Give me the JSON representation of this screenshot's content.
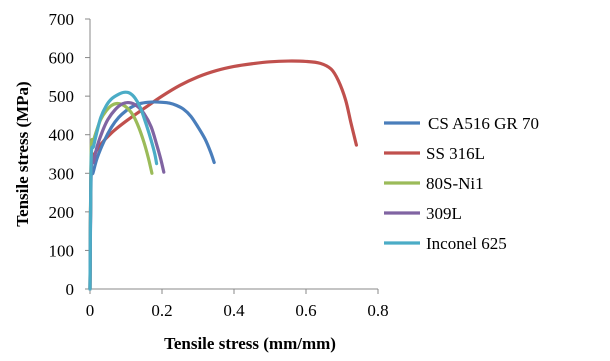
{
  "chart_data": {
    "type": "line",
    "title": "",
    "xlabel": "Tensile stress (mm/mm)",
    "ylabel": "Tensile stress (MPa)",
    "xlim": [
      0,
      0.8
    ],
    "ylim": [
      0,
      700
    ],
    "x_ticks": [
      "0",
      "0.2",
      "0.4",
      "0.6",
      "0.8"
    ],
    "y_ticks": [
      "0",
      "100",
      "200",
      "300",
      "400",
      "500",
      "600",
      "700"
    ],
    "x_tick_values": [
      0,
      0.2,
      0.4,
      0.6,
      0.8
    ],
    "y_tick_values": [
      0,
      100,
      200,
      300,
      400,
      500,
      600,
      700
    ],
    "grid": false,
    "legend_position": "right",
    "series": [
      {
        "name": "CS A516 GR 70",
        "color": "#4a7ebb",
        "points": [
          [
            0,
            0
          ],
          [
            0.003,
            290
          ],
          [
            0.008,
            300
          ],
          [
            0.02,
            340
          ],
          [
            0.04,
            385
          ],
          [
            0.06,
            420
          ],
          [
            0.08,
            445
          ],
          [
            0.1,
            462
          ],
          [
            0.12,
            474
          ],
          [
            0.14,
            481
          ],
          [
            0.16,
            484
          ],
          [
            0.18,
            485
          ],
          [
            0.2,
            484
          ],
          [
            0.22,
            482
          ],
          [
            0.24,
            476
          ],
          [
            0.26,
            466
          ],
          [
            0.28,
            448
          ],
          [
            0.3,
            420
          ],
          [
            0.32,
            388
          ],
          [
            0.335,
            355
          ],
          [
            0.345,
            328
          ]
        ]
      },
      {
        "name": "SS 316L",
        "color": "#c0504d",
        "points": [
          [
            0,
            0
          ],
          [
            0.003,
            320
          ],
          [
            0.01,
            345
          ],
          [
            0.03,
            375
          ],
          [
            0.06,
            405
          ],
          [
            0.1,
            435
          ],
          [
            0.15,
            468
          ],
          [
            0.2,
            500
          ],
          [
            0.25,
            528
          ],
          [
            0.3,
            550
          ],
          [
            0.35,
            566
          ],
          [
            0.4,
            577
          ],
          [
            0.45,
            584
          ],
          [
            0.5,
            589
          ],
          [
            0.55,
            591
          ],
          [
            0.6,
            590
          ],
          [
            0.64,
            585
          ],
          [
            0.67,
            570
          ],
          [
            0.69,
            540
          ],
          [
            0.71,
            490
          ],
          [
            0.725,
            430
          ],
          [
            0.74,
            373
          ]
        ]
      },
      {
        "name": "80S-Ni1",
        "color": "#9bbb59",
        "points": [
          [
            0,
            0
          ],
          [
            0.003,
            350
          ],
          [
            0.01,
            385
          ],
          [
            0.02,
            415
          ],
          [
            0.03,
            440
          ],
          [
            0.045,
            462
          ],
          [
            0.06,
            476
          ],
          [
            0.075,
            481
          ],
          [
            0.09,
            478
          ],
          [
            0.105,
            468
          ],
          [
            0.12,
            450
          ],
          [
            0.135,
            420
          ],
          [
            0.15,
            380
          ],
          [
            0.162,
            340
          ],
          [
            0.172,
            300
          ]
        ]
      },
      {
        "name": "309L",
        "color": "#8064a2",
        "points": [
          [
            0,
            0
          ],
          [
            0.003,
            300
          ],
          [
            0.01,
            330
          ],
          [
            0.02,
            370
          ],
          [
            0.035,
            410
          ],
          [
            0.05,
            440
          ],
          [
            0.07,
            465
          ],
          [
            0.09,
            480
          ],
          [
            0.11,
            483
          ],
          [
            0.13,
            475
          ],
          [
            0.15,
            455
          ],
          [
            0.17,
            420
          ],
          [
            0.185,
            375
          ],
          [
            0.197,
            335
          ],
          [
            0.205,
            303
          ]
        ]
      },
      {
        "name": "Inconel 625",
        "color": "#4bacc6",
        "points": [
          [
            0,
            0
          ],
          [
            0.003,
            330
          ],
          [
            0.01,
            370
          ],
          [
            0.02,
            410
          ],
          [
            0.03,
            445
          ],
          [
            0.045,
            475
          ],
          [
            0.06,
            493
          ],
          [
            0.08,
            505
          ],
          [
            0.095,
            510
          ],
          [
            0.11,
            508
          ],
          [
            0.125,
            495
          ],
          [
            0.14,
            470
          ],
          [
            0.155,
            430
          ],
          [
            0.17,
            385
          ],
          [
            0.18,
            350
          ],
          [
            0.185,
            325
          ]
        ]
      }
    ]
  }
}
